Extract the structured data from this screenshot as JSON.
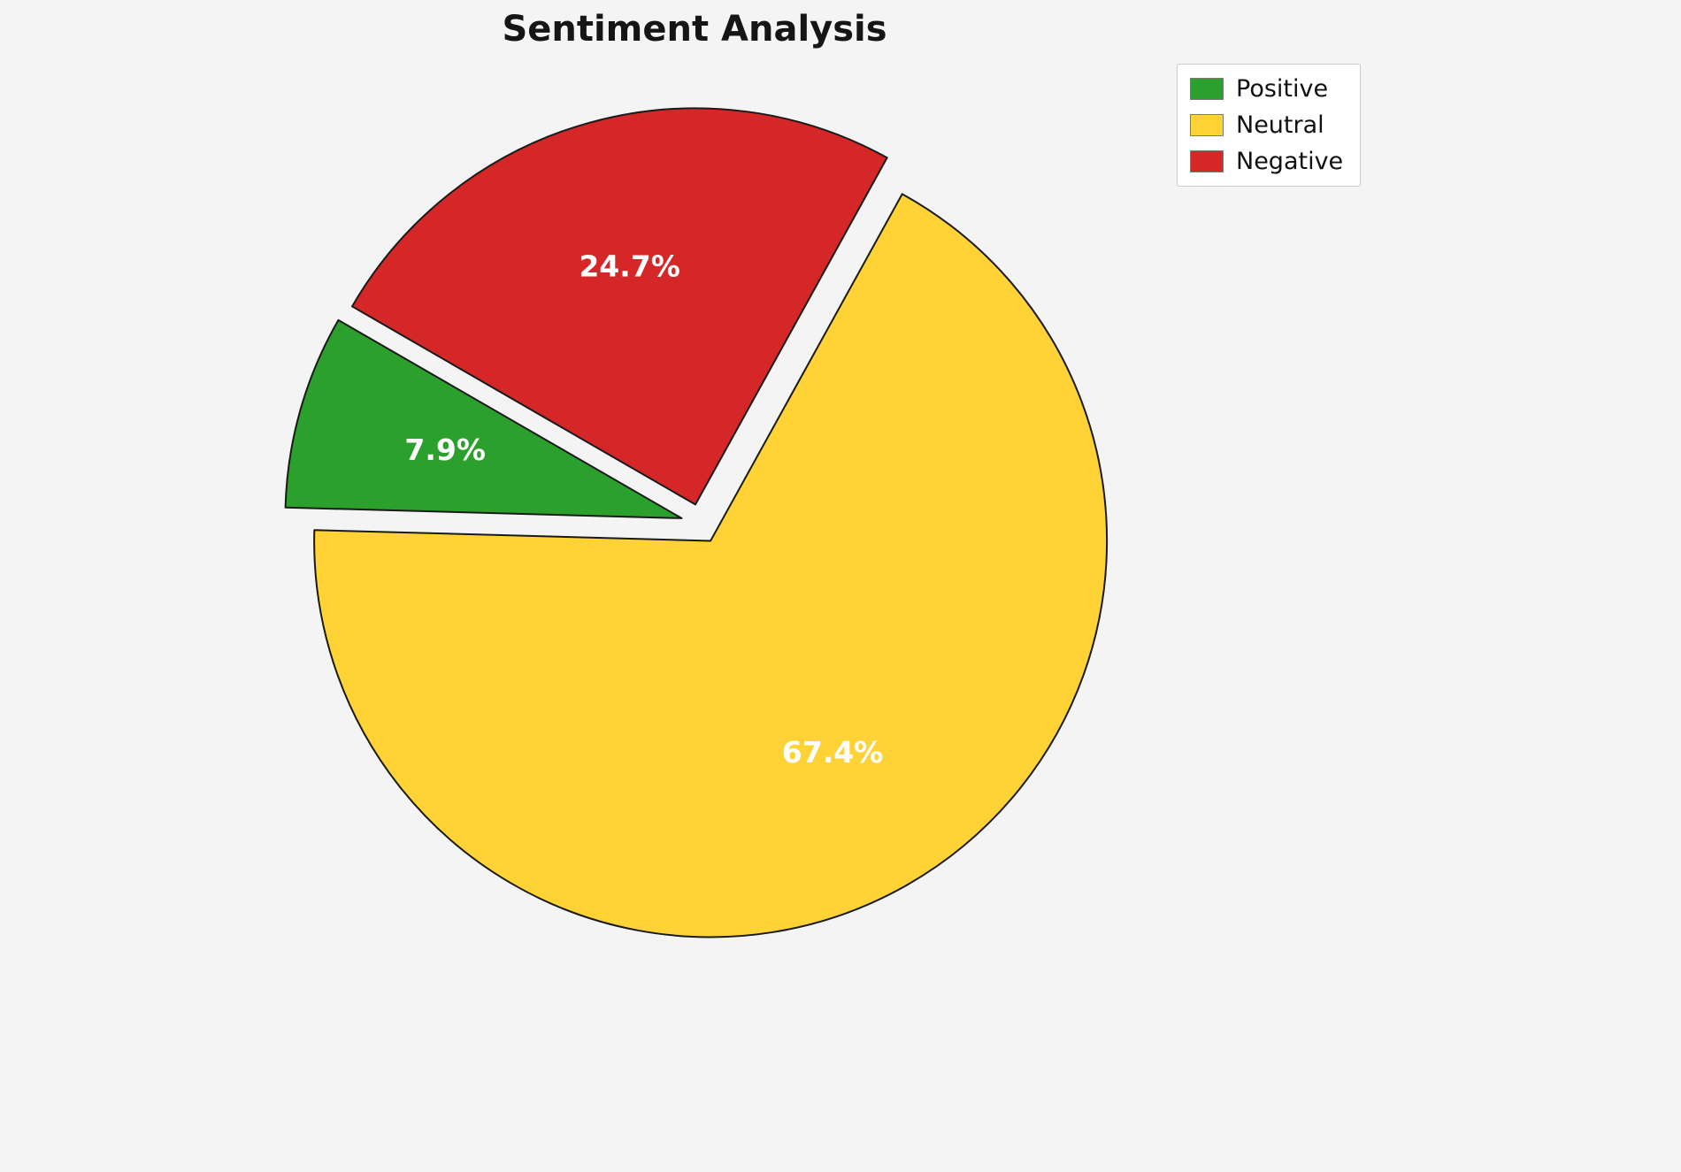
{
  "title": "Sentiment Analysis",
  "background_color": "#f4f4f5",
  "chart_data": {
    "type": "pie",
    "title": "Sentiment Analysis",
    "labels": [
      "Positive",
      "Neutral",
      "Negative"
    ],
    "values": [
      7.9,
      67.4,
      24.7
    ],
    "pct_labels": [
      "7.9%",
      "67.4%",
      "24.7%"
    ],
    "colors": [
      "#2ca02c",
      "#ffd335",
      "#d62728"
    ],
    "edge_color": "#1a1a1a",
    "label_color": "#ffffff",
    "start_angle": 150,
    "direction": "counterclockwise",
    "explode": [
      0.05,
      0.05,
      0.05
    ],
    "pct_distance": 0.62,
    "legend_position": "upper right",
    "legend_entries": [
      "Positive",
      "Neutral",
      "Negative"
    ]
  }
}
